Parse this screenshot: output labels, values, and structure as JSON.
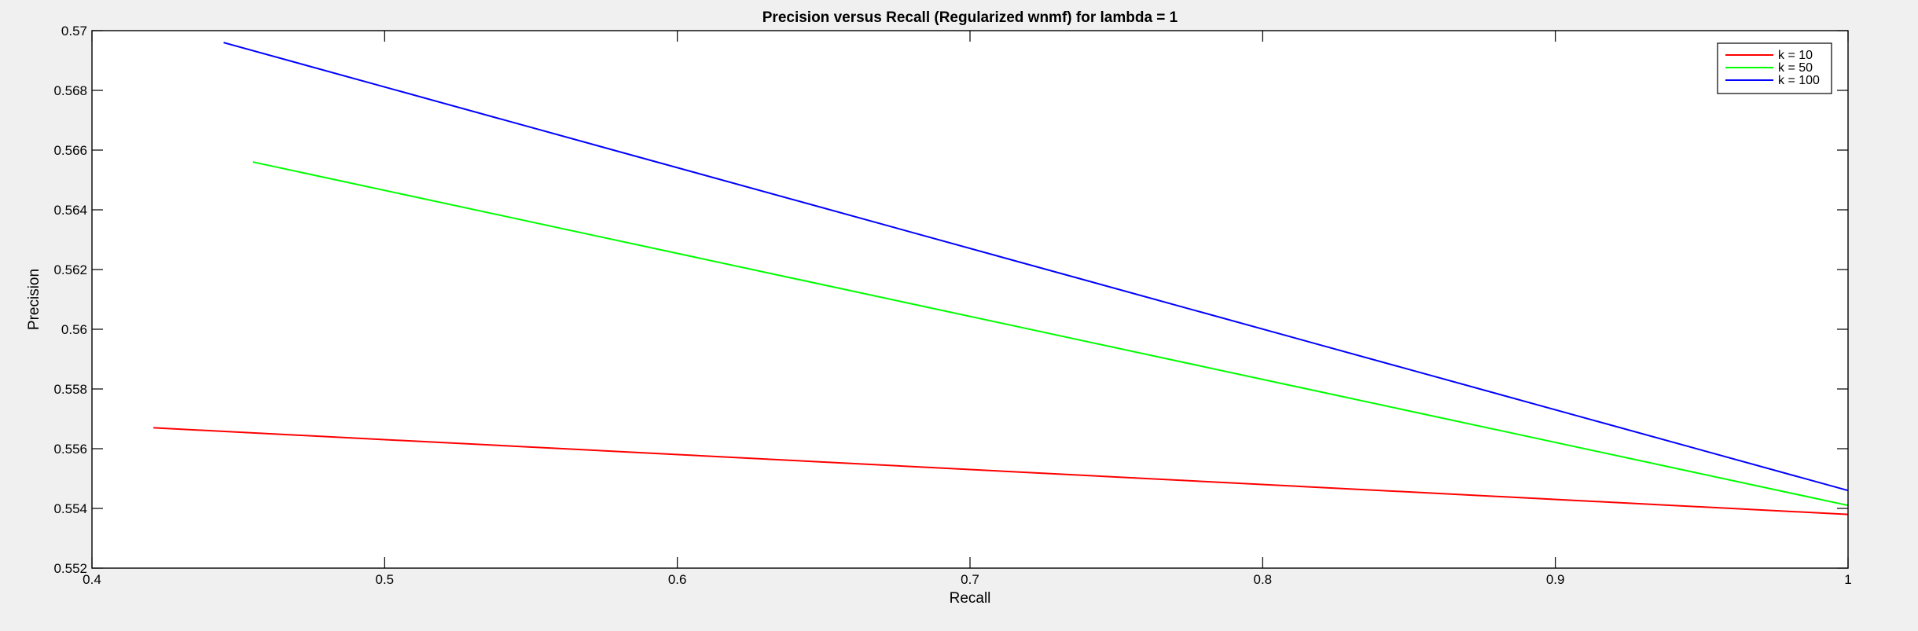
{
  "chart_data": {
    "type": "line",
    "title": "Precision versus Recall (Regularized wnmf) for lambda = 1",
    "xlabel": "Recall",
    "ylabel": "Precision",
    "xlim": [
      0.4,
      1.0
    ],
    "ylim": [
      0.552,
      0.57
    ],
    "xticks": [
      0.4,
      0.5,
      0.6,
      0.7,
      0.8,
      0.9,
      1.0
    ],
    "xtick_labels": [
      "0.4",
      "0.5",
      "0.6",
      "0.7",
      "0.8",
      "0.9",
      "1"
    ],
    "yticks": [
      0.552,
      0.554,
      0.556,
      0.558,
      0.56,
      0.562,
      0.564,
      0.566,
      0.568,
      0.57
    ],
    "ytick_labels": [
      "0.552",
      "0.554",
      "0.556",
      "0.558",
      "0.56",
      "0.562",
      "0.564",
      "0.566",
      "0.568",
      "0.57"
    ],
    "grid": false,
    "legend_position": "top-right",
    "series": [
      {
        "name": "k = 10",
        "color": "#ff0000",
        "x": [
          0.421,
          1.0
        ],
        "y": [
          0.5567,
          0.5538
        ]
      },
      {
        "name": "k = 50",
        "color": "#00ff00",
        "x": [
          0.455,
          1.0
        ],
        "y": [
          0.5656,
          0.5541
        ]
      },
      {
        "name": "k = 100",
        "color": "#0000ff",
        "x": [
          0.445,
          1.0
        ],
        "y": [
          0.5696,
          0.5546
        ]
      }
    ]
  }
}
